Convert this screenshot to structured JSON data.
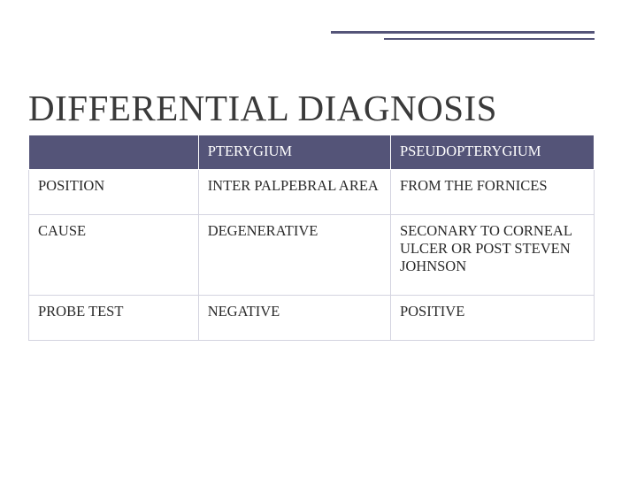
{
  "title": "DIFFERENTIAL DIAGNOSIS",
  "table": {
    "type": "table",
    "background_color": "#ffffff",
    "header_bg": "#545478",
    "header_text_color": "#ffffff",
    "cell_text_color": "#2a2a2a",
    "cell_border_color": "#d4d4e0",
    "font_family": "Georgia, serif",
    "font_size_pt": 12,
    "column_widths_pct": [
      30,
      34,
      36
    ],
    "columns": [
      "",
      "PTERYGIUM",
      "PSEUDOPTERYGIUM"
    ],
    "rows": [
      [
        "POSITION",
        "INTER PALPEBRAL AREA",
        "FROM THE FORNICES"
      ],
      [
        "CAUSE",
        "DEGENERATIVE",
        "SECONARY TO CORNEAL ULCER OR POST STEVEN JOHNSON"
      ],
      [
        "PROBE TEST",
        "NEGATIVE",
        "POSITIVE"
      ]
    ]
  },
  "decor": {
    "line_color": "#545478"
  }
}
